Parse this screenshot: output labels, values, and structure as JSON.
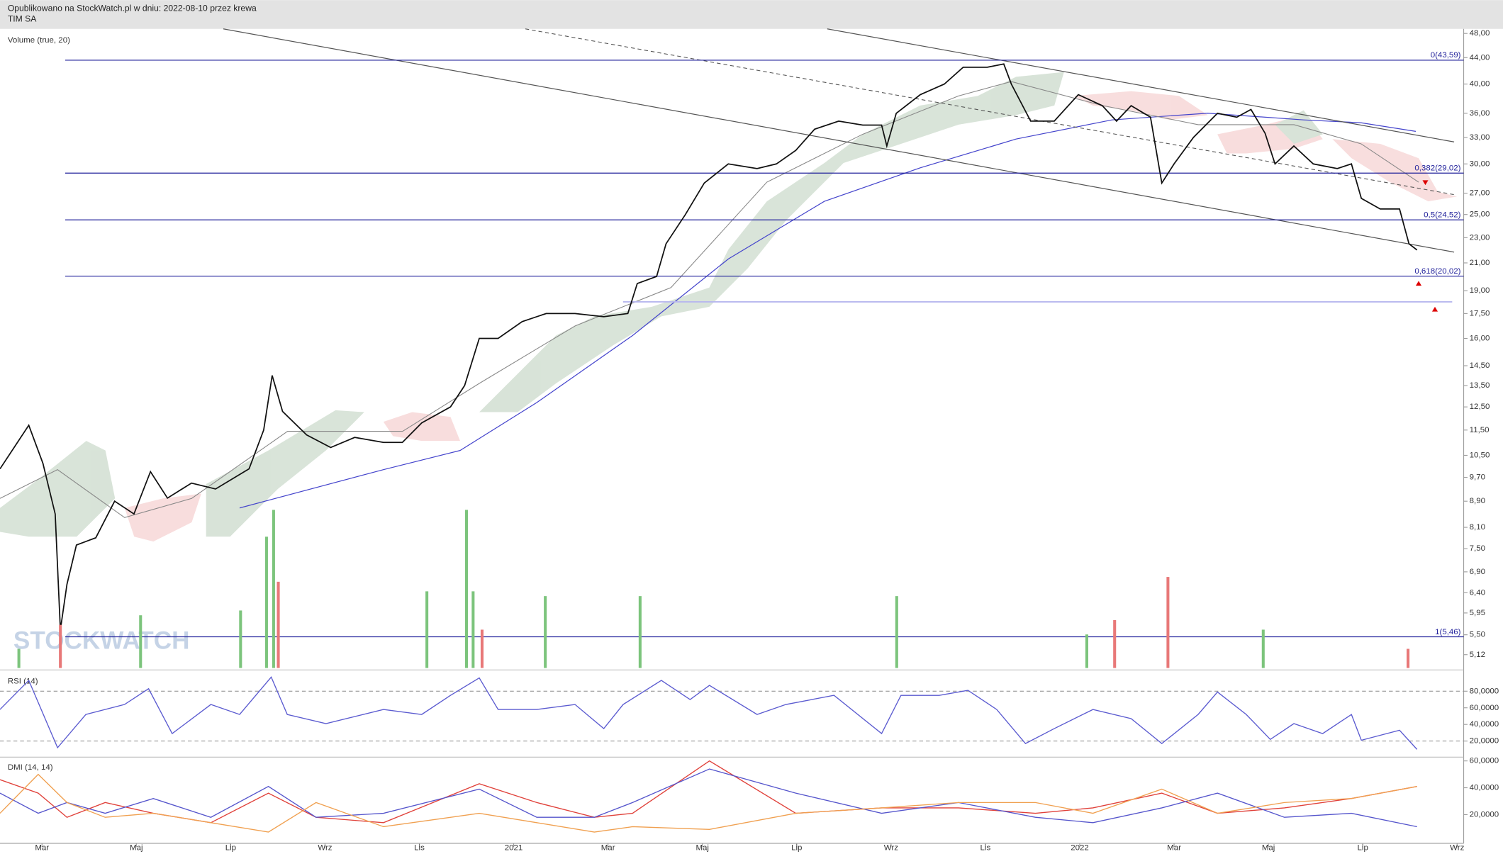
{
  "header": {
    "published": "Opublikowano na StockWatch.pl w dniu: 2022-08-10 przez krewa",
    "ticker": "TIM SA"
  },
  "watermark": "STOCKWATCH",
  "chart_data": [
    {
      "type": "line",
      "x": [
        -0.89,
        -0.28,
        0.02,
        0.28,
        0.39,
        0.53,
        0.73,
        1.14,
        1.54,
        1.95,
        2.3,
        2.66,
        3.17,
        3.68,
        4.39,
        4.7,
        4.88,
        5.1,
        5.61,
        6.12,
        6.63,
        7.24,
        7.64,
        8.05,
        8.66,
        8.96,
        9.27,
        9.67,
        10.18,
        10.69,
        11.3,
        11.91,
        12.42,
        12.62,
        13.03,
        13.23,
        13.64,
        14.04,
        14.55,
        15.16,
        15.57,
        15.98,
        16.38,
        16.89,
        17.4,
        17.8,
        17.91,
        18.11,
        18.62,
        19.13,
        19.53,
        20.04,
        20.39,
        20.55,
        20.96,
        21.46,
        21.97,
        22.48,
        22.78,
        23.09,
        23.5,
        23.74,
        24.0,
        24.41,
        24.92,
        25.33,
        25.63,
        25.93,
        26.14,
        26.54,
        26.95,
        27.46,
        27.76,
        27.97,
        28.37,
        28.78,
        28.98,
        29.15
      ],
      "series": [
        {
          "color": "#111111",
          "values": [
            10,
            11.7,
            10.2,
            8.5,
            5.6,
            6.6,
            7.6,
            7.8,
            8.9,
            8.5,
            9.9,
            9,
            9.5,
            9.3,
            10,
            11.5,
            14,
            12.3,
            11.3,
            10.8,
            11.2,
            11,
            11,
            11.8,
            12.5,
            13.5,
            16,
            16,
            17,
            17.5,
            17.5,
            17.3,
            17.5,
            19.5,
            20,
            22.5,
            25,
            28,
            30,
            29.5,
            30,
            31.5,
            34,
            35,
            34.5,
            34.5,
            32,
            36,
            38.5,
            40,
            42.5,
            42.5,
            43,
            40,
            35,
            35,
            38.5,
            37,
            35,
            37,
            35.5,
            28,
            30,
            33,
            36,
            35.5,
            36.5,
            33.5,
            30,
            32,
            30,
            29.5,
            30,
            26.5,
            25.5,
            25.5,
            22.5,
            22
          ]
        }
      ],
      "xlim": [
        -0.89,
        30.14
      ],
      "ylim": [
        4.88,
        48.8
      ],
      "log_scale": true,
      "yticks": [
        {
          "value": 48,
          "label": "48,00"
        },
        {
          "value": 44,
          "label": "44,00"
        },
        {
          "value": 40,
          "label": "40,00"
        },
        {
          "value": 36,
          "label": "36,00"
        },
        {
          "value": 33,
          "label": "33,00"
        },
        {
          "value": 30,
          "label": "30,00"
        },
        {
          "value": 27,
          "label": "27,00"
        },
        {
          "value": 25,
          "label": "25,00"
        },
        {
          "value": 23,
          "label": "23,00"
        },
        {
          "value": 21,
          "label": "21,00"
        },
        {
          "value": 19,
          "label": "19,00"
        },
        {
          "value": 17.5,
          "label": "17,50"
        },
        {
          "value": 16,
          "label": "16,00"
        },
        {
          "value": 14.5,
          "label": "14,50"
        },
        {
          "value": 13.5,
          "label": "13,50"
        },
        {
          "value": 12.5,
          "label": "12,50"
        },
        {
          "value": 11.5,
          "label": "11,50"
        },
        {
          "value": 10.5,
          "label": "10,50"
        },
        {
          "value": 9.7,
          "label": "9,70"
        },
        {
          "value": 8.9,
          "label": "8,90"
        },
        {
          "value": 8.1,
          "label": "8,10"
        },
        {
          "value": 7.5,
          "label": "7,50"
        },
        {
          "value": 6.9,
          "label": "6,90"
        },
        {
          "value": 6.4,
          "label": "6,40"
        },
        {
          "value": 5.95,
          "label": "5,95"
        },
        {
          "value": 5.5,
          "label": "5,50"
        },
        {
          "value": 5.12,
          "label": "5,12"
        }
      ],
      "xticks": [
        {
          "value": 0,
          "label": "Mar"
        },
        {
          "value": 2,
          "label": "Maj"
        },
        {
          "value": 4,
          "label": "Lip"
        },
        {
          "value": 6,
          "label": "Wrz"
        },
        {
          "value": 8,
          "label": "Lis"
        },
        {
          "value": 10,
          "label": "2021"
        },
        {
          "value": 12,
          "label": "Mar"
        },
        {
          "value": 14,
          "label": "Maj"
        },
        {
          "value": 16,
          "label": "Lip"
        },
        {
          "value": 18,
          "label": "Wrz"
        },
        {
          "value": 20,
          "label": "Lis"
        },
        {
          "value": 22,
          "label": "2022"
        },
        {
          "value": 24,
          "label": "Mar"
        },
        {
          "value": 26,
          "label": "Maj"
        },
        {
          "value": 28,
          "label": "Lip"
        },
        {
          "value": 30,
          "label": "Wrz"
        }
      ],
      "levels": [
        {
          "value": 43.59,
          "label": "0(43,59)"
        },
        {
          "value": 29.02,
          "label": "0,382(29,02)"
        },
        {
          "value": 24.52,
          "label": "0,5(24,52)"
        },
        {
          "value": 20.02,
          "label": "0,618(20,02)"
        },
        {
          "value": 5.46,
          "label": "1(5,46)"
        }
      ],
      "level_color": "#1f1f9a",
      "extra_levels": [
        18.25
      ]
    },
    {
      "type": "bar",
      "title": "Volume (true, 20)",
      "x": [
        -0.49,
        0.39,
        2.09,
        4.21,
        4.76,
        4.91,
        5.01,
        8.16,
        9.0,
        9.14,
        9.33,
        10.67,
        12.68,
        18.12,
        22.15,
        22.74,
        23.87,
        25.89,
        28.96
      ],
      "values": [
        20,
        45,
        55,
        60,
        137,
        165,
        90,
        80,
        165,
        80,
        40,
        75,
        75,
        75,
        35,
        50,
        95,
        40,
        20
      ],
      "colors": [
        "#7cc47c",
        "#e87878",
        "#7cc47c",
        "#7cc47c",
        "#7cc47c",
        "#7cc47c",
        "#e87878",
        "#7cc47c",
        "#7cc47c",
        "#7cc47c",
        "#e87878",
        "#7cc47c",
        "#7cc47c",
        "#7cc47c",
        "#7cc47c",
        "#e87878",
        "#e87878",
        "#7cc47c",
        "#e87878"
      ],
      "xlim": [
        -0.89,
        30.14
      ],
      "ylim": [
        0,
        170
      ]
    },
    {
      "type": "line",
      "title": "RSI (14)",
      "x": [
        -0.89,
        -0.28,
        0.33,
        0.93,
        1.75,
        2.26,
        2.76,
        3.58,
        4.19,
        4.86,
        5.2,
        6.02,
        7.24,
        8.05,
        8.66,
        9.27,
        9.67,
        10.49,
        11.3,
        11.91,
        12.32,
        13.13,
        13.74,
        14.15,
        15.16,
        15.77,
        16.79,
        17.8,
        18.21,
        19.02,
        19.63,
        20.24,
        20.85,
        21.46,
        22.28,
        23.09,
        23.74,
        24.51,
        24.92,
        25.53,
        26.04,
        26.54,
        27.15,
        27.76,
        27.97,
        28.78,
        29.15
      ],
      "series": [
        {
          "color": "#5b5bd0",
          "values": [
            58,
            93,
            12,
            52,
            64,
            83,
            29,
            64,
            52,
            97,
            52,
            41,
            58,
            52,
            75,
            96,
            58,
            58,
            64,
            35,
            64,
            93,
            70,
            87,
            52,
            64,
            75,
            29,
            75,
            75,
            81,
            58,
            17,
            35,
            58,
            47,
            17,
            52,
            79,
            52,
            22,
            41,
            29,
            52,
            21,
            33,
            10
          ]
        }
      ],
      "xlim": [
        -0.89,
        30.14
      ],
      "ylim": [
        3,
        101
      ],
      "yticks": [
        {
          "value": 80,
          "label": "80,0000"
        },
        {
          "value": 60,
          "label": "60,0000"
        },
        {
          "value": 40,
          "label": "40,0000"
        },
        {
          "value": 20,
          "label": "20,0000"
        }
      ],
      "dashed_levels": [
        80,
        20
      ]
    },
    {
      "type": "line",
      "title": "DMI (14, 14)",
      "x": [
        -0.89,
        -0.08,
        0.53,
        1.34,
        2.36,
        3.58,
        4.8,
        5.81,
        7.24,
        9.27,
        10.49,
        11.71,
        12.52,
        14.15,
        15.98,
        17.8,
        19.43,
        21.06,
        22.28,
        23.74,
        24.92,
        26.34,
        27.76,
        29.15
      ],
      "series": [
        {
          "color": "#e0413a",
          "values": [
            46,
            36,
            18,
            29,
            21,
            14,
            36,
            18,
            14,
            43,
            29,
            18,
            21,
            60,
            21,
            25,
            25,
            21,
            25,
            36,
            21,
            25,
            32,
            41
          ]
        },
        {
          "color": "#5555cc",
          "values": [
            36,
            21,
            29,
            21,
            32,
            18,
            41,
            18,
            21,
            39,
            18,
            18,
            29,
            54,
            36,
            21,
            29,
            18,
            14,
            25,
            36,
            18,
            21,
            11
          ]
        },
        {
          "color": "#f0a050",
          "values": [
            21,
            50,
            29,
            18,
            21,
            14,
            7,
            29,
            11,
            21,
            14,
            7,
            11,
            9,
            21,
            25,
            29,
            29,
            21,
            39,
            21,
            29,
            32,
            41
          ]
        }
      ],
      "xlim": [
        -0.89,
        30.14
      ],
      "ylim": [
        -1.4,
        60.7
      ],
      "yticks": [
        {
          "value": 60,
          "label": "60,0000"
        },
        {
          "value": 40,
          "label": "40,0000"
        },
        {
          "value": 20,
          "label": "20,0000"
        }
      ]
    }
  ]
}
